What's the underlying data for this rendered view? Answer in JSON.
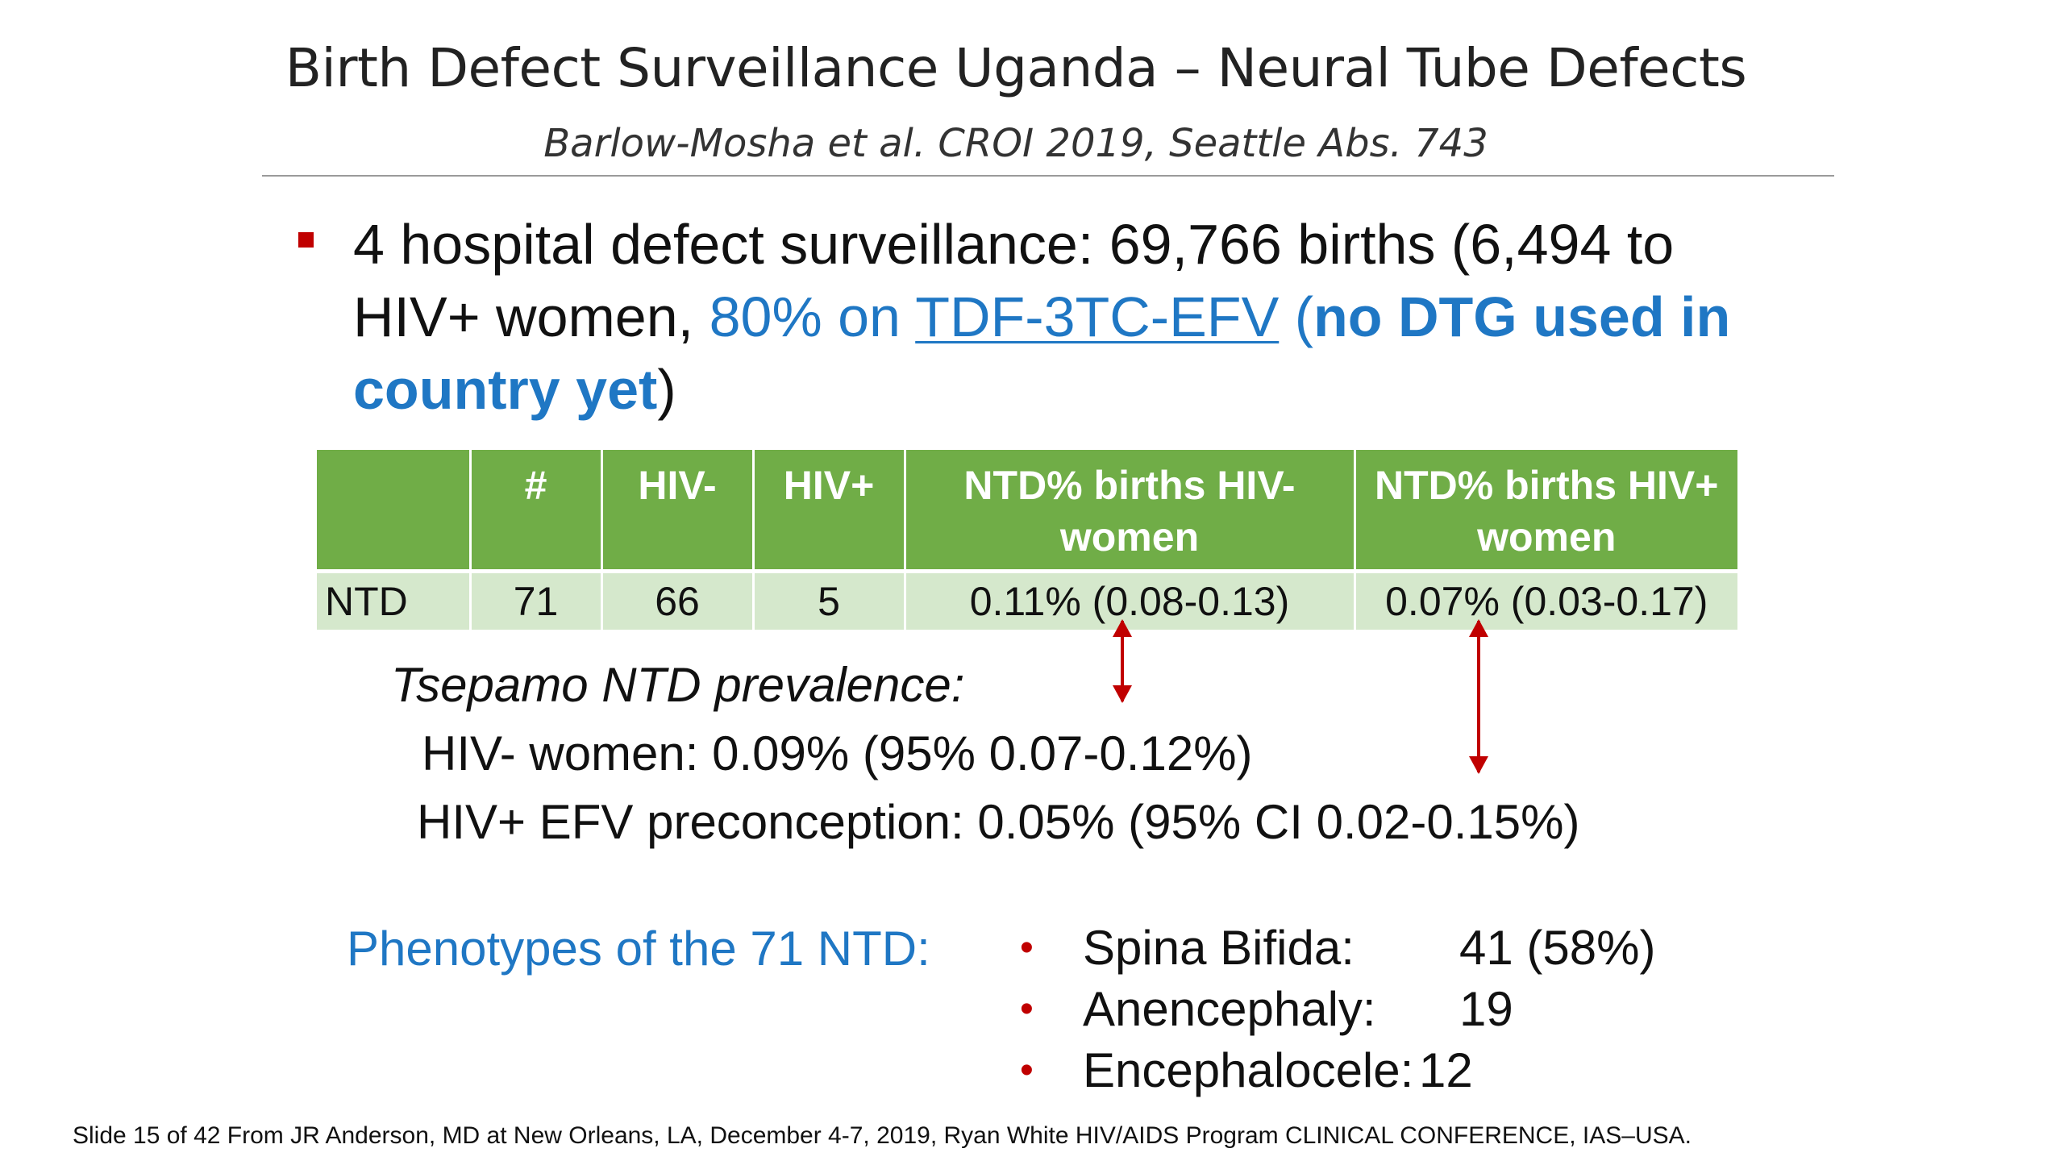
{
  "slide": {
    "title": "Birth Defect Surveillance Uganda – Neural Tube Defects",
    "subtitle": "Barlow-Mosha et al.  CROI 2019, Seattle  Abs. 743"
  },
  "bullet": {
    "part1": "4 hospital defect surveillance: 69,766 births (6,494 to HIV+ women, ",
    "part2": "80% on ",
    "link": "TDF-3TC-EFV",
    "part3": " (",
    "part4": "no DTG used in country yet",
    "part5": ")",
    "marker_color": "#c00000",
    "accent_color": "#1f77c4"
  },
  "table": {
    "header_color": "#70ad47",
    "row_color": "#d5e8cc",
    "headers": [
      "",
      "#",
      "HIV-",
      "HIV+",
      "NTD%  births HIV- women",
      "NTD% births HIV+ women"
    ],
    "row": [
      "NTD",
      "71",
      "66",
      "5",
      "0.11% (0.08-0.13)",
      "0.07% (0.03-0.17)"
    ]
  },
  "tsepamo": {
    "title": "Tsepamo NTD prevalence:",
    "line1": "HIV- women: 0.09% (95% 0.07-0.12%)",
    "line2": "HIV+ EFV preconception: 0.05% (95% CI 0.02-0.15%)"
  },
  "phenotypes": {
    "label": "Phenotypes of the 71 NTD:",
    "items": [
      {
        "name": "Spina Bifida:",
        "value": "41 (58%)"
      },
      {
        "name": "Anencephaly:",
        "value": "19"
      },
      {
        "name": "Encephalocele:",
        "value": "12"
      }
    ]
  },
  "footer": "Slide 15 of 42 From JR Anderson, MD at New Orleans, LA, December 4-7, 2019, Ryan White HIV/AIDS Program CLINICAL CONFERENCE, IAS–USA."
}
